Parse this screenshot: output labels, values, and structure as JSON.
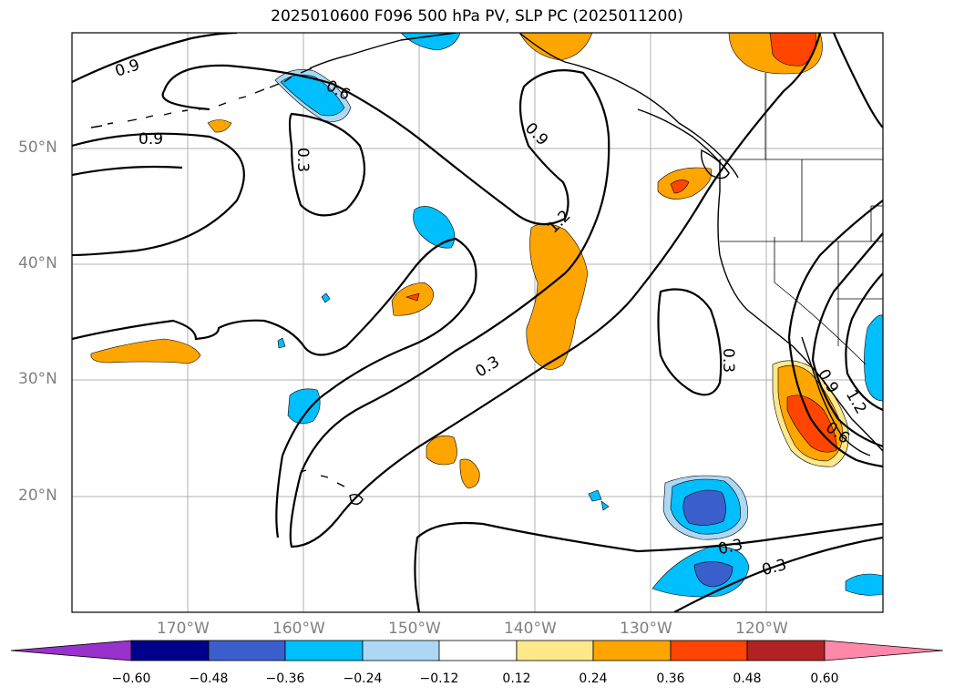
{
  "title": "2025010600 F096 500 hPa PV, SLP PC (2025011200)",
  "lat_labels": [
    "50°N",
    "40°N",
    "30°N",
    "20°N"
  ],
  "lon_labels": [
    "170°W",
    "160°W",
    "150°W",
    "140°W",
    "130°W",
    "120°W"
  ],
  "contour_labels": [
    "0.9",
    "0.9",
    "0.6",
    "0.3",
    "0.9",
    "1.2",
    "0.3",
    "0.3",
    "0.3",
    "0.3",
    "0.6",
    "0.9",
    "1.2"
  ],
  "colorbar": {
    "ticks": [
      "−0.60",
      "−0.48",
      "−0.36",
      "−0.24",
      "−0.12",
      "0.12",
      "0.24",
      "0.36",
      "0.48",
      "0.60"
    ],
    "colors": [
      "#9932cc",
      "#00008b",
      "#3a5fcd",
      "#00bfff",
      "#add8f5",
      "#ffffff",
      "#ffe88a",
      "#ffa500",
      "#ff4500",
      "#b22222",
      "#ff88aa"
    ]
  },
  "map_extent": {
    "lon_min": -180,
    "lon_max": -110,
    "lat_min": 10,
    "lat_max": 60
  }
}
